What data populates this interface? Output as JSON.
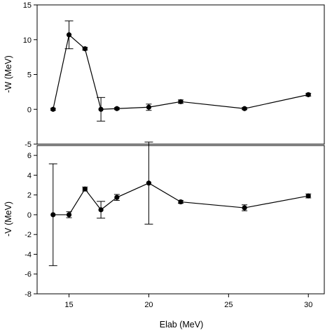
{
  "chart_data": [
    {
      "type": "scatter",
      "panel": "top",
      "ylabel": "-W (MeV)",
      "ylim": [
        -5,
        15
      ],
      "yticks": [
        "-5",
        "0",
        "5",
        "10",
        "15"
      ],
      "xlim": [
        13,
        31
      ],
      "grid": false,
      "series": [
        {
          "x": [
            14,
            15,
            16,
            17,
            18,
            20,
            22,
            26,
            30
          ],
          "y": [
            0,
            10.7,
            8.7,
            0,
            0.1,
            0.3,
            1.1,
            0.1,
            2.1
          ],
          "err": [
            0.15,
            2.0,
            0.2,
            1.7,
            0.15,
            0.45,
            0.25,
            0.15,
            0.2
          ]
        }
      ]
    },
    {
      "type": "scatter",
      "panel": "bottom",
      "ylabel": "-V (MeV)",
      "xlabel": "Elab (MeV)",
      "ylim": [
        -8,
        7
      ],
      "yticks": [
        "-8",
        "-6",
        "-4",
        "-2",
        "0",
        "2",
        "4",
        "6"
      ],
      "xlim": [
        13,
        31
      ],
      "xticks": [
        "15",
        "20",
        "25",
        "30"
      ],
      "grid": false,
      "series": [
        {
          "x": [
            14,
            15,
            16,
            17,
            18,
            20,
            22,
            26,
            30
          ],
          "y": [
            0,
            0,
            2.6,
            0.5,
            1.75,
            3.2,
            1.3,
            0.7,
            1.9
          ],
          "err": [
            5.15,
            0.3,
            0.2,
            0.85,
            0.3,
            4.15,
            0.15,
            0.3,
            0.2
          ]
        }
      ]
    }
  ]
}
